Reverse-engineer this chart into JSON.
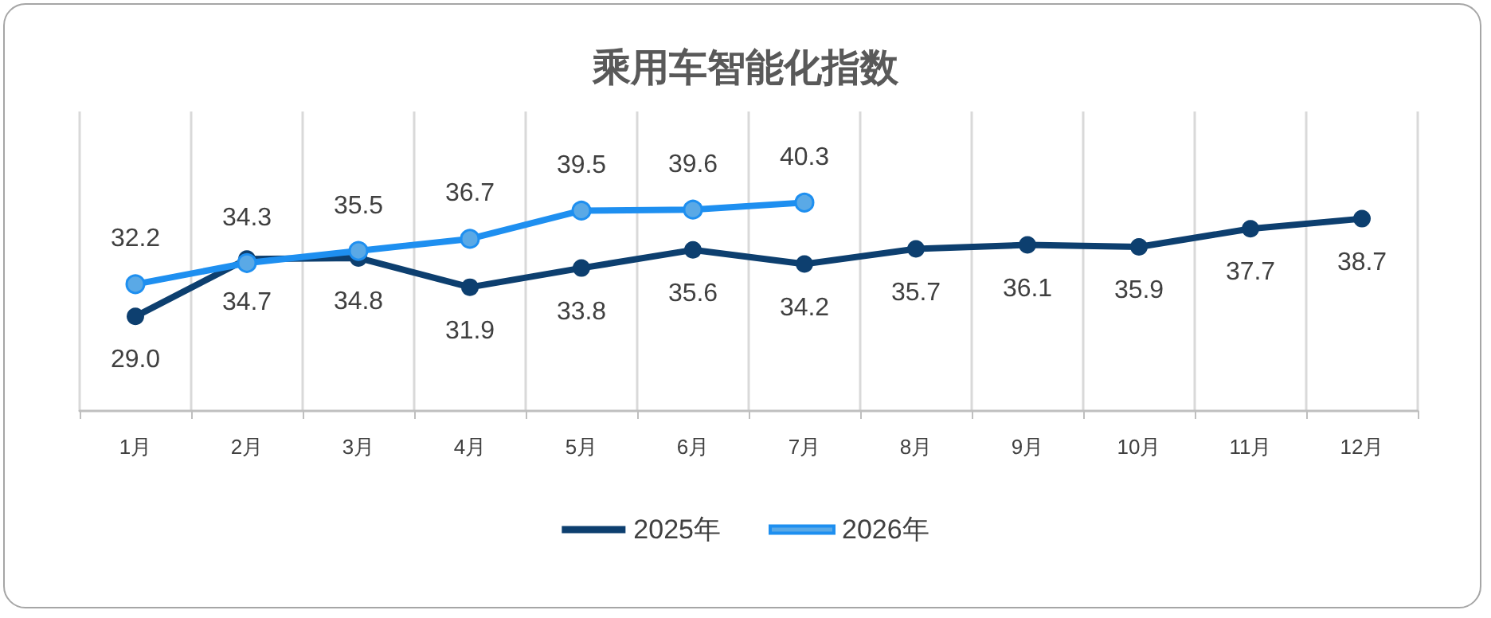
{
  "chart_data": {
    "type": "line",
    "title": "乘用车智能化指数",
    "categories": [
      "1月",
      "2月",
      "3月",
      "4月",
      "5月",
      "6月",
      "7月",
      "8月",
      "9月",
      "10月",
      "11月",
      "12月"
    ],
    "series": [
      {
        "name": "2025年",
        "color": "#0d3f6f",
        "values": [
          29.0,
          34.7,
          34.8,
          31.9,
          33.8,
          35.6,
          34.2,
          35.7,
          36.1,
          35.9,
          37.7,
          38.7
        ],
        "value_labels": [
          "29.0",
          "34.7",
          "34.8",
          "31.9",
          "33.8",
          "35.6",
          "34.2",
          "35.7",
          "36.1",
          "35.9",
          "37.7",
          "38.7"
        ]
      },
      {
        "name": "2026年",
        "color": "#1e8ff0",
        "values": [
          32.2,
          34.3,
          35.5,
          36.7,
          39.5,
          39.6,
          40.3,
          null,
          null,
          null,
          null,
          null
        ],
        "value_labels": [
          "32.2",
          "34.3",
          "35.5",
          "36.7",
          "39.5",
          "39.6",
          "40.3",
          null,
          null,
          null,
          null,
          null
        ]
      }
    ],
    "grid": "x",
    "legend": "bottom",
    "marker": "circle",
    "line_style": "solid"
  }
}
